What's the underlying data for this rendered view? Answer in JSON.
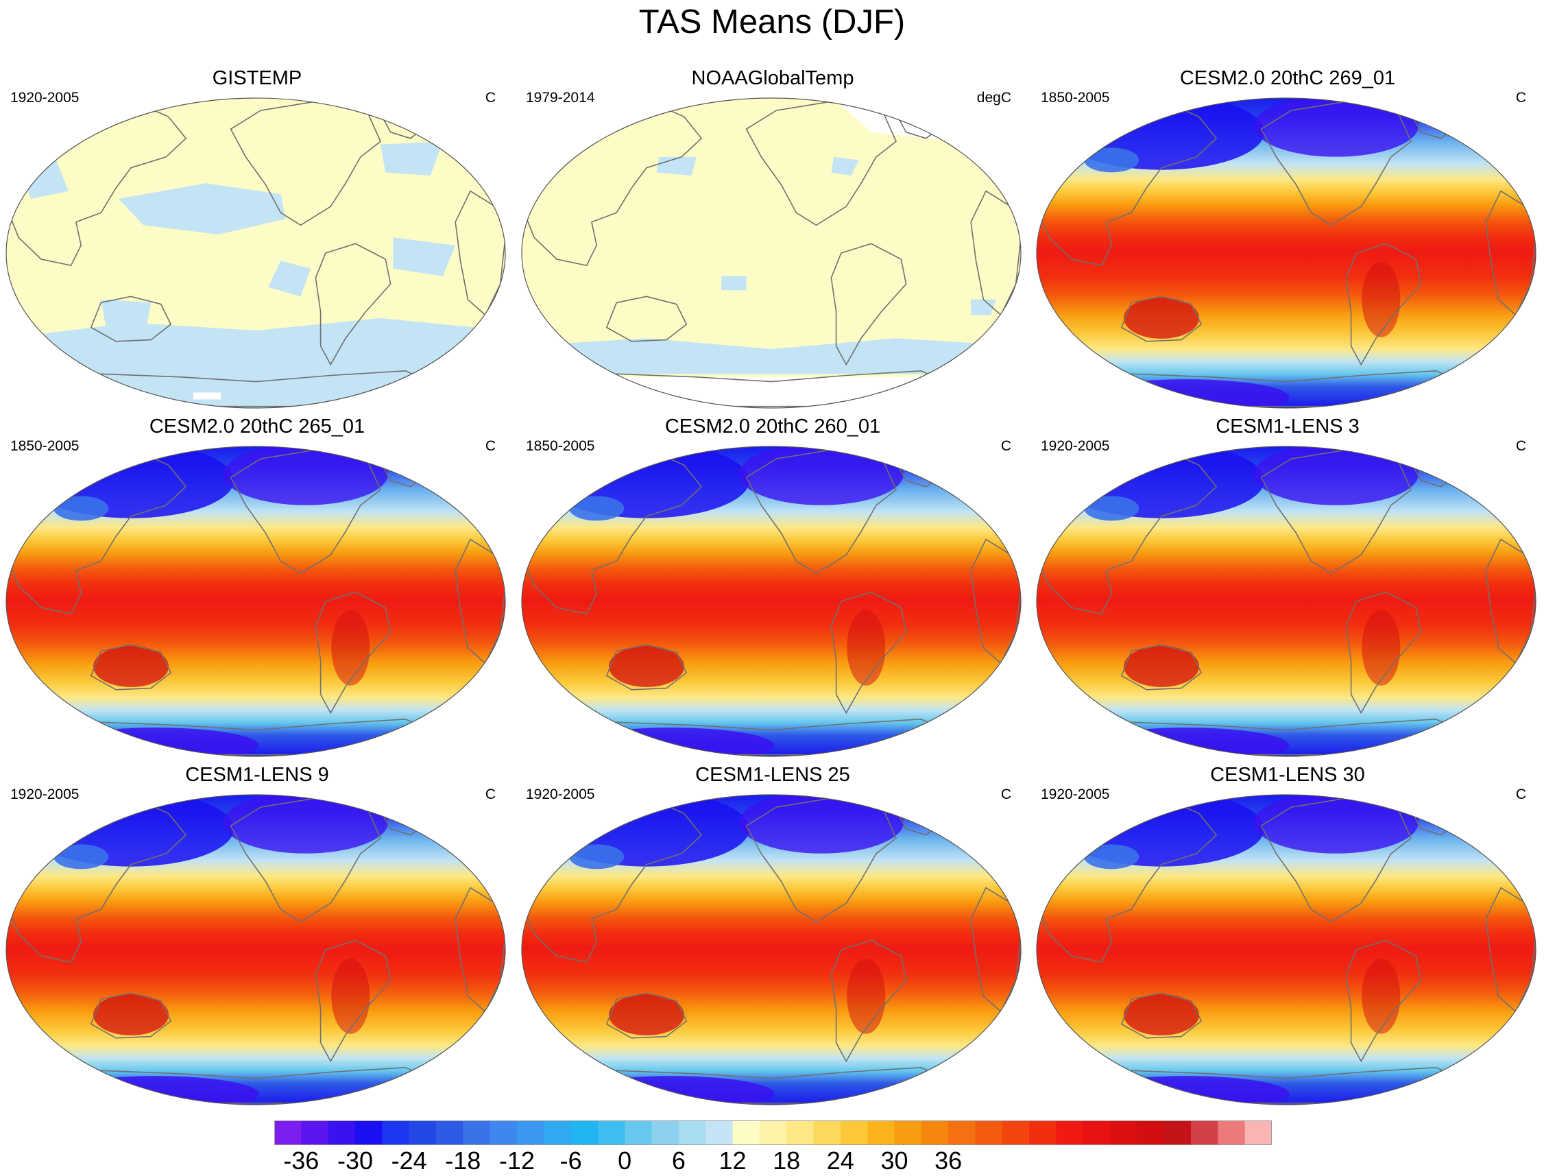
{
  "title": "TAS Means (DJF)",
  "panels": [
    {
      "title": "GISTEMP",
      "period": "1920-2005",
      "units": "C",
      "kind": "obs_giss"
    },
    {
      "title": "NOAAGlobalTemp",
      "period": "1979-2014",
      "units": "degC",
      "kind": "obs_noaa"
    },
    {
      "title": "CESM2.0 20thC 269_01",
      "period": "1850-2005",
      "units": "C",
      "kind": "model"
    },
    {
      "title": "CESM2.0 20thC 265_01",
      "period": "1850-2005",
      "units": "C",
      "kind": "model"
    },
    {
      "title": "CESM2.0 20thC 260_01",
      "period": "1850-2005",
      "units": "C",
      "kind": "model"
    },
    {
      "title": "CESM1-LENS 3",
      "period": "1920-2005",
      "units": "C",
      "kind": "model"
    },
    {
      "title": "CESM1-LENS 9",
      "period": "1920-2005",
      "units": "C",
      "kind": "model"
    },
    {
      "title": "CESM1-LENS 25",
      "period": "1920-2005",
      "units": "C",
      "kind": "model"
    },
    {
      "title": "CESM1-LENS 30",
      "period": "1920-2005",
      "units": "C",
      "kind": "model"
    }
  ],
  "colorbar": {
    "labels": [
      "-36",
      "-30",
      "-24",
      "-18",
      "-12",
      "-6",
      "0",
      "6",
      "12",
      "18",
      "24",
      "30",
      "36"
    ],
    "colors": [
      "#7a1ff0",
      "#5b15f0",
      "#3a12f0",
      "#1a0ff0",
      "#1c36f2",
      "#2448e6",
      "#2f5ae6",
      "#3a72ea",
      "#3f86ee",
      "#3a98f0",
      "#32a8f2",
      "#20b4f2",
      "#3cbef0",
      "#66c8ee",
      "#8cd2ee",
      "#a8dcf0",
      "#c2e4f4",
      "#fdfbc6",
      "#fdf3a6",
      "#fde884",
      "#fcd95c",
      "#fcc83a",
      "#fbb41e",
      "#f99d10",
      "#f7860e",
      "#f5700e",
      "#f45b0e",
      "#f3440e",
      "#f22e10",
      "#f01a12",
      "#e81212",
      "#dc0e10",
      "#d20e10",
      "#c4141a",
      "#d44048",
      "#ec7a7a",
      "#fbb4b4"
    ]
  },
  "chart_data": {
    "type": "heatmap",
    "title": "TAS Means (DJF)",
    "variable": "TAS",
    "season": "DJF",
    "units": "C",
    "contour_interval": 3,
    "color_levels_min": -36,
    "color_levels_max": 36,
    "colorbar_ticks": [
      -36,
      -30,
      -24,
      -18,
      -12,
      -6,
      0,
      6,
      12,
      18,
      24,
      30,
      36
    ],
    "datasets": [
      {
        "name": "GISTEMP",
        "period": "1920-2005",
        "units": "C"
      },
      {
        "name": "NOAAGlobalTemp",
        "period": "1979-2014",
        "units": "degC"
      },
      {
        "name": "CESM2.0 20thC 269_01",
        "period": "1850-2005",
        "units": "C"
      },
      {
        "name": "CESM2.0 20thC 265_01",
        "period": "1850-2005",
        "units": "C"
      },
      {
        "name": "CESM2.0 20thC 260_01",
        "period": "1850-2005",
        "units": "C"
      },
      {
        "name": "CESM1-LENS 3",
        "period": "1920-2005",
        "units": "C"
      },
      {
        "name": "CESM1-LENS 9",
        "period": "1920-2005",
        "units": "C"
      },
      {
        "name": "CESM1-LENS 25",
        "period": "1920-2005",
        "units": "C"
      },
      {
        "name": "CESM1-LENS 30",
        "period": "1920-2005",
        "units": "C"
      }
    ]
  }
}
